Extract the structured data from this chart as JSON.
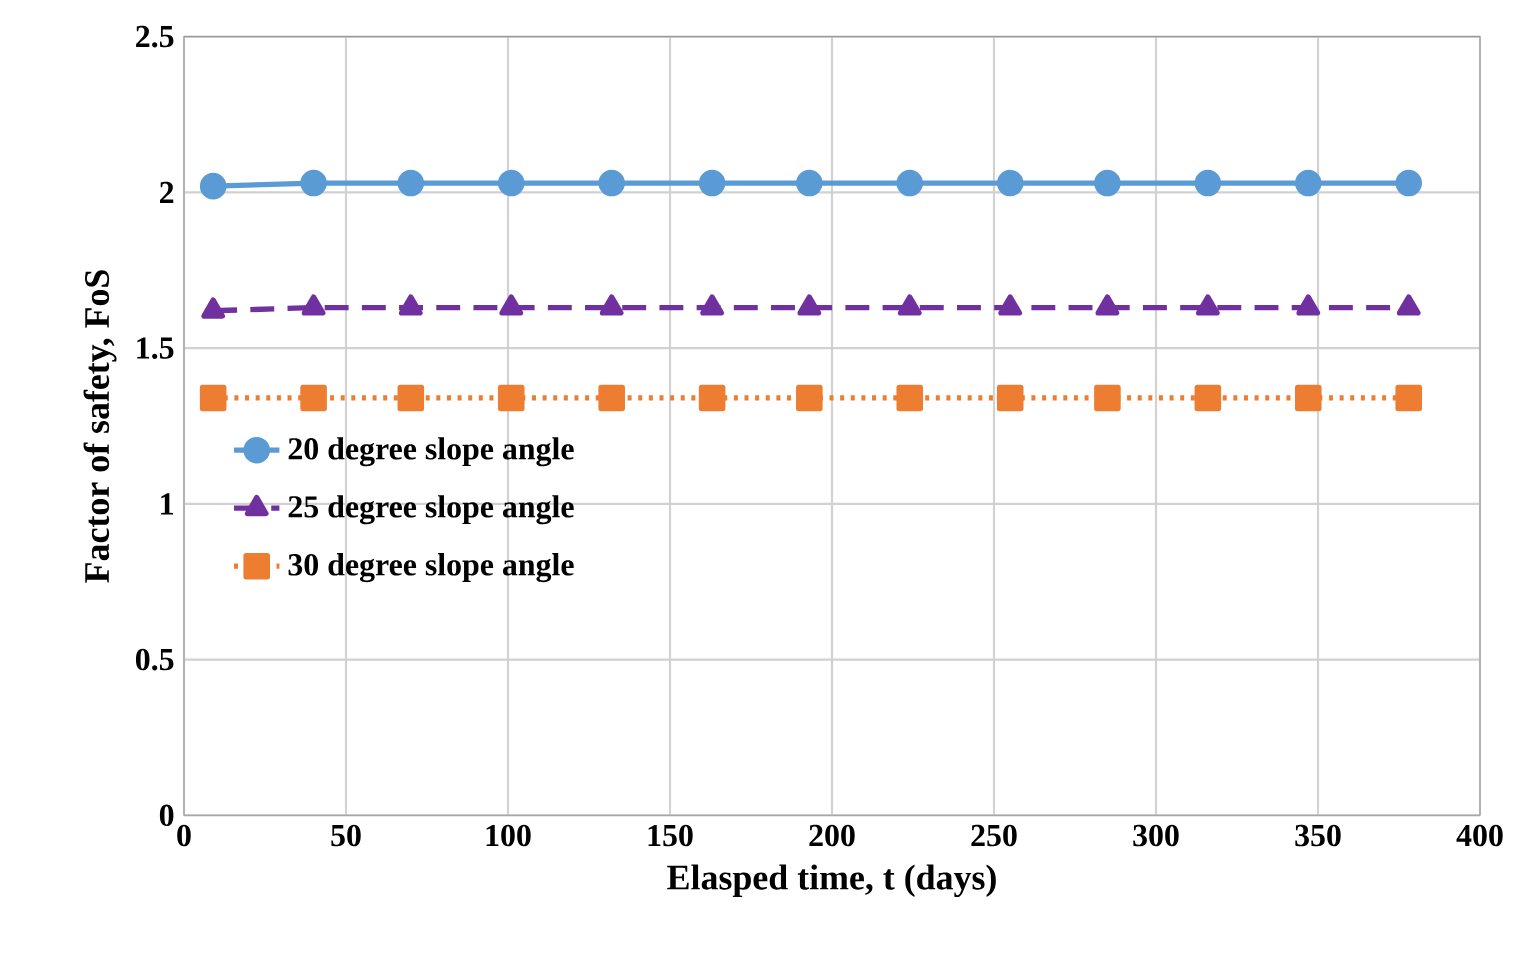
{
  "chart_data": {
    "type": "line",
    "xlabel": "Elasped time, t (days)",
    "ylabel": "Factor of safety, FoS",
    "x": [
      9,
      40,
      70,
      101,
      132,
      163,
      193,
      224,
      255,
      285,
      316,
      347,
      378
    ],
    "series": [
      {
        "name": "20 degree slope angle",
        "color": "#5b9bd5",
        "marker": "circle",
        "line_style": "solid",
        "values": [
          2.02,
          2.03,
          2.03,
          2.03,
          2.03,
          2.03,
          2.03,
          2.03,
          2.03,
          2.03,
          2.03,
          2.03,
          2.03
        ]
      },
      {
        "name": "25 degree slope angle",
        "color": "#7030a0",
        "marker": "triangle",
        "line_style": "dashed",
        "values": [
          1.62,
          1.63,
          1.63,
          1.63,
          1.63,
          1.63,
          1.63,
          1.63,
          1.63,
          1.63,
          1.63,
          1.63,
          1.63
        ]
      },
      {
        "name": "30 degree slope angle",
        "color": "#ed7d31",
        "marker": "square",
        "line_style": "dotted",
        "values": [
          1.34,
          1.34,
          1.34,
          1.34,
          1.34,
          1.34,
          1.34,
          1.34,
          1.34,
          1.34,
          1.34,
          1.34,
          1.34
        ]
      }
    ],
    "xlim": [
      0,
      400
    ],
    "xticks": [
      0,
      50,
      100,
      150,
      200,
      250,
      300,
      350,
      400
    ],
    "ylim": [
      0,
      2.5
    ],
    "yticks": [
      0,
      0.5,
      1,
      1.5,
      2,
      2.5
    ],
    "grid": true,
    "legend": "left"
  }
}
